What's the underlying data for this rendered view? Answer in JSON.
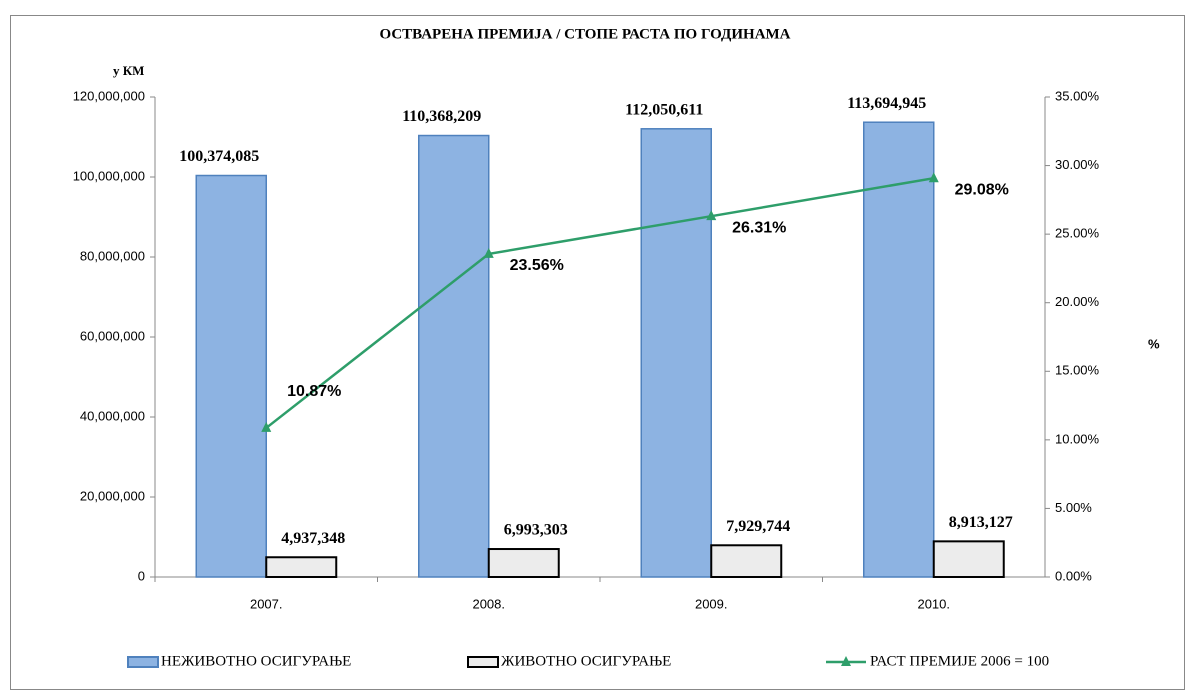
{
  "chart_data": {
    "type": "bar_line",
    "title": "ОСТВАРЕНА ПРЕМИЈА / СТОПЕ РАСТА ПО ГОДИНАМА",
    "y_label": "у КМ",
    "y2_label": "%",
    "categories": [
      "2007.",
      "2008.",
      "2009.",
      "2010."
    ],
    "series": [
      {
        "name": "НЕЖИВОТНО ОСИГУРАЊЕ",
        "type": "bar",
        "color": "#8db3e2",
        "edge": "#4f81bd",
        "values": [
          100374085,
          110368209,
          112050611,
          113694945
        ],
        "value_labels": [
          "100,374,085",
          "110,368,209",
          "112,050,611",
          "113,694,945"
        ]
      },
      {
        "name": "ЖИВОТНО ОСИГУРАЊЕ",
        "type": "bar",
        "color": "#ececec",
        "edge": "#000000",
        "values": [
          4937348,
          6993303,
          7929744,
          8913127
        ],
        "value_labels": [
          "4,937,348",
          "6,993,303",
          "7,929,744",
          "8,913,127"
        ]
      },
      {
        "name": "РАСТ ПРЕМИЈЕ 2006 = 100",
        "type": "line",
        "axis": "y2",
        "color": "#2e9e6a",
        "values": [
          10.87,
          23.56,
          26.31,
          29.08
        ],
        "value_labels": [
          "10.87%",
          "23.56%",
          "26.31%",
          "29.08%"
        ]
      }
    ],
    "ylim": [
      0,
      120000000
    ],
    "yticks": [
      0,
      {
        "value": 20000000,
        "label": "20,000,000"
      },
      {
        "value": 40000000,
        "label": "40,000,000"
      },
      {
        "value": 60000000,
        "label": "60,000,000"
      },
      {
        "value": 80000000,
        "label": "80,000,000"
      },
      {
        "value": 100000000,
        "label": "100,000,000"
      },
      {
        "value": 120000000,
        "label": "120,000,000"
      }
    ],
    "y2lim": [
      0,
      35
    ],
    "y2ticks": [
      {
        "value": 0,
        "label": "0.00%"
      },
      {
        "value": 5,
        "label": "5.00%"
      },
      {
        "value": 10,
        "label": "10.00%"
      },
      {
        "value": 15,
        "label": "15.00%"
      },
      {
        "value": 20,
        "label": "20.00%"
      },
      {
        "value": 25,
        "label": "25.00%"
      },
      {
        "value": 30,
        "label": "30.00%"
      },
      {
        "value": 35,
        "label": "35.00%"
      }
    ]
  }
}
